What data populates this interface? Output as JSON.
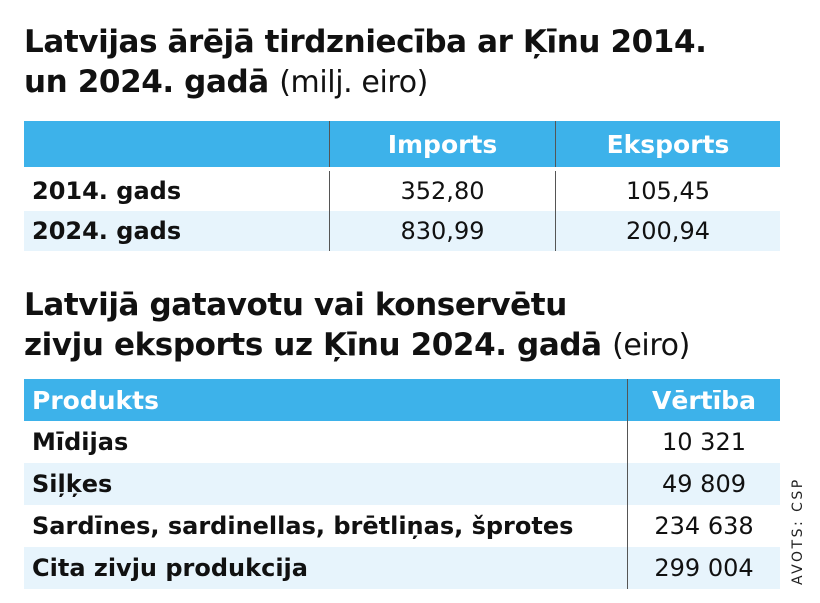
{
  "title1": {
    "line1": "Latvijas ārējā tirdzniecība ar Ķīnu 2014.",
    "line2": "un 2024. gadā",
    "unit": "(milj. eiro)"
  },
  "table1": {
    "headers": [
      "",
      "Imports",
      "Eksports"
    ],
    "rows": [
      {
        "label": "2014. gads",
        "imports": "352,80",
        "eksports": "105,45"
      },
      {
        "label": "2024. gads",
        "imports": "830,99",
        "eksports": "200,94"
      }
    ]
  },
  "title2": {
    "line1": "Latvijā gatavotu vai konservētu",
    "line2": "zivju eksports uz Ķīnu 2024. gadā",
    "unit": "(eiro)"
  },
  "table2": {
    "headers": [
      "Produkts",
      "Vērtība"
    ],
    "rows": [
      {
        "product": "Mīdijas",
        "value": "10 321"
      },
      {
        "product": "Siļķes",
        "value": "49 809"
      },
      {
        "product": "Sardīnes, sardinellas, brētliņas, šprotes",
        "value": "234 638"
      },
      {
        "product": "Cita zivju produkcija",
        "value": "299 004"
      }
    ]
  },
  "source": "AVOTS: CSP",
  "colors": {
    "header": "#3db2ea",
    "alt_row": "#e7f4fc"
  }
}
